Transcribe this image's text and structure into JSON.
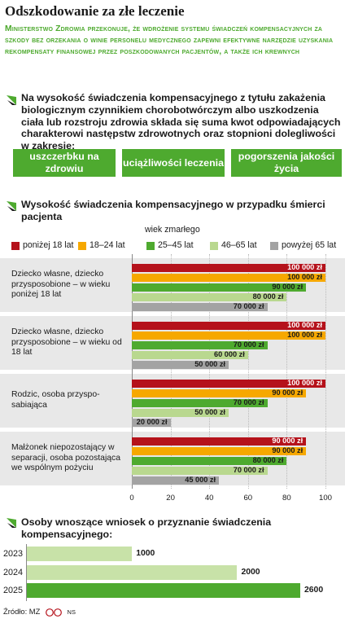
{
  "title": "Odszkodowanie za złe leczenie",
  "subtitle": "Ministerstwo Zdrowia przekonuje, że wdrożenie systemu świadczeń kompensacyjnych za szkody bez orzekania o winie personelu medycznego zapewni efektywne narzędzie uzyskania rekompensaty finansowej przez poszkodowanych pacjentów, a także ich krewnych",
  "intro": {
    "text": "Na wysokość świadczenia kompensacyjnego z tytułu zakażenia biologicznym czynnikiem chorobotwórczym albo uszkodzenia ciała lub rozstroju zdrowia składa się suma kwot odpowiadających charakterowi następstw zdrowotnych oraz stopnioni dolegliwości w zakresie:",
    "boxes": [
      "uszczerbku na zdrowiu",
      "uciążliwości leczenia",
      "pogorszenia jakości życia"
    ]
  },
  "colors": {
    "green_brand": "#4eaa2f",
    "series": [
      "#b5121b",
      "#f6a800",
      "#4eaa2f",
      "#b9d88f",
      "#a3a3a3"
    ]
  },
  "chart_data": [
    {
      "type": "bar",
      "orientation": "horizontal",
      "title": "Wysokość świadczenia kompensacyjnego w przypadku śmierci pacjenta",
      "legend_title": "wiek zmarłego",
      "legend_placement": "top",
      "xlim": [
        0,
        100
      ],
      "xticks": [
        "0",
        "20",
        "40",
        "60",
        "80",
        "100"
      ],
      "categories": [
        "Dziecko własne, dziecko przysposobione – w wieku poniżej 18 lat",
        "Dziecko własne, dziecko przysposobione – w wieku od 18 lat",
        "Rodzic, osoba przyspo-sabiająca",
        "Małżonek niepozostający w separacji, osoba pozostająca we wspólnym pożyciu"
      ],
      "series": [
        {
          "name": "poniżej 18 lat",
          "values": [
            100000,
            100000,
            100000,
            90000
          ],
          "labels": [
            "100 000 zł",
            "100 000 zł",
            "100 000 zł",
            "90 000 zł"
          ]
        },
        {
          "name": "18–24 lat",
          "values": [
            100000,
            100000,
            90000,
            90000
          ],
          "labels": [
            "100 000 zł",
            "100 000 zł",
            "90 000 zł",
            "90 000 zł"
          ]
        },
        {
          "name": "25–45 lat",
          "values": [
            90000,
            70000,
            70000,
            80000
          ],
          "labels": [
            "90 000 zł",
            "70 000 zł",
            "70 000 zł",
            "80 000 zł"
          ]
        },
        {
          "name": "46–65 lat",
          "values": [
            80000,
            60000,
            50000,
            70000
          ],
          "labels": [
            "80 000 zł",
            "60 000 zł",
            "50 000 zł",
            "70 000 zł"
          ]
        },
        {
          "name": "powyżej 65 lat",
          "values": [
            70000,
            50000,
            20000,
            45000
          ],
          "labels": [
            "70 000 zł",
            "50 000 zł",
            "20 000 zł",
            "45 000 zł"
          ]
        }
      ]
    },
    {
      "type": "bar",
      "orientation": "horizontal",
      "title": "Osoby wnoszące wniosek o przyznanie świadczenia kompensacyjnego:",
      "categories": [
        "2023",
        "2024",
        "2025"
      ],
      "values": [
        1000,
        2000,
        2600
      ],
      "colors": [
        "#c8e2a8",
        "#c8e2a8",
        "#4eaa2f"
      ]
    }
  ],
  "source": "Źródło: MZ",
  "logo_text": "NS"
}
